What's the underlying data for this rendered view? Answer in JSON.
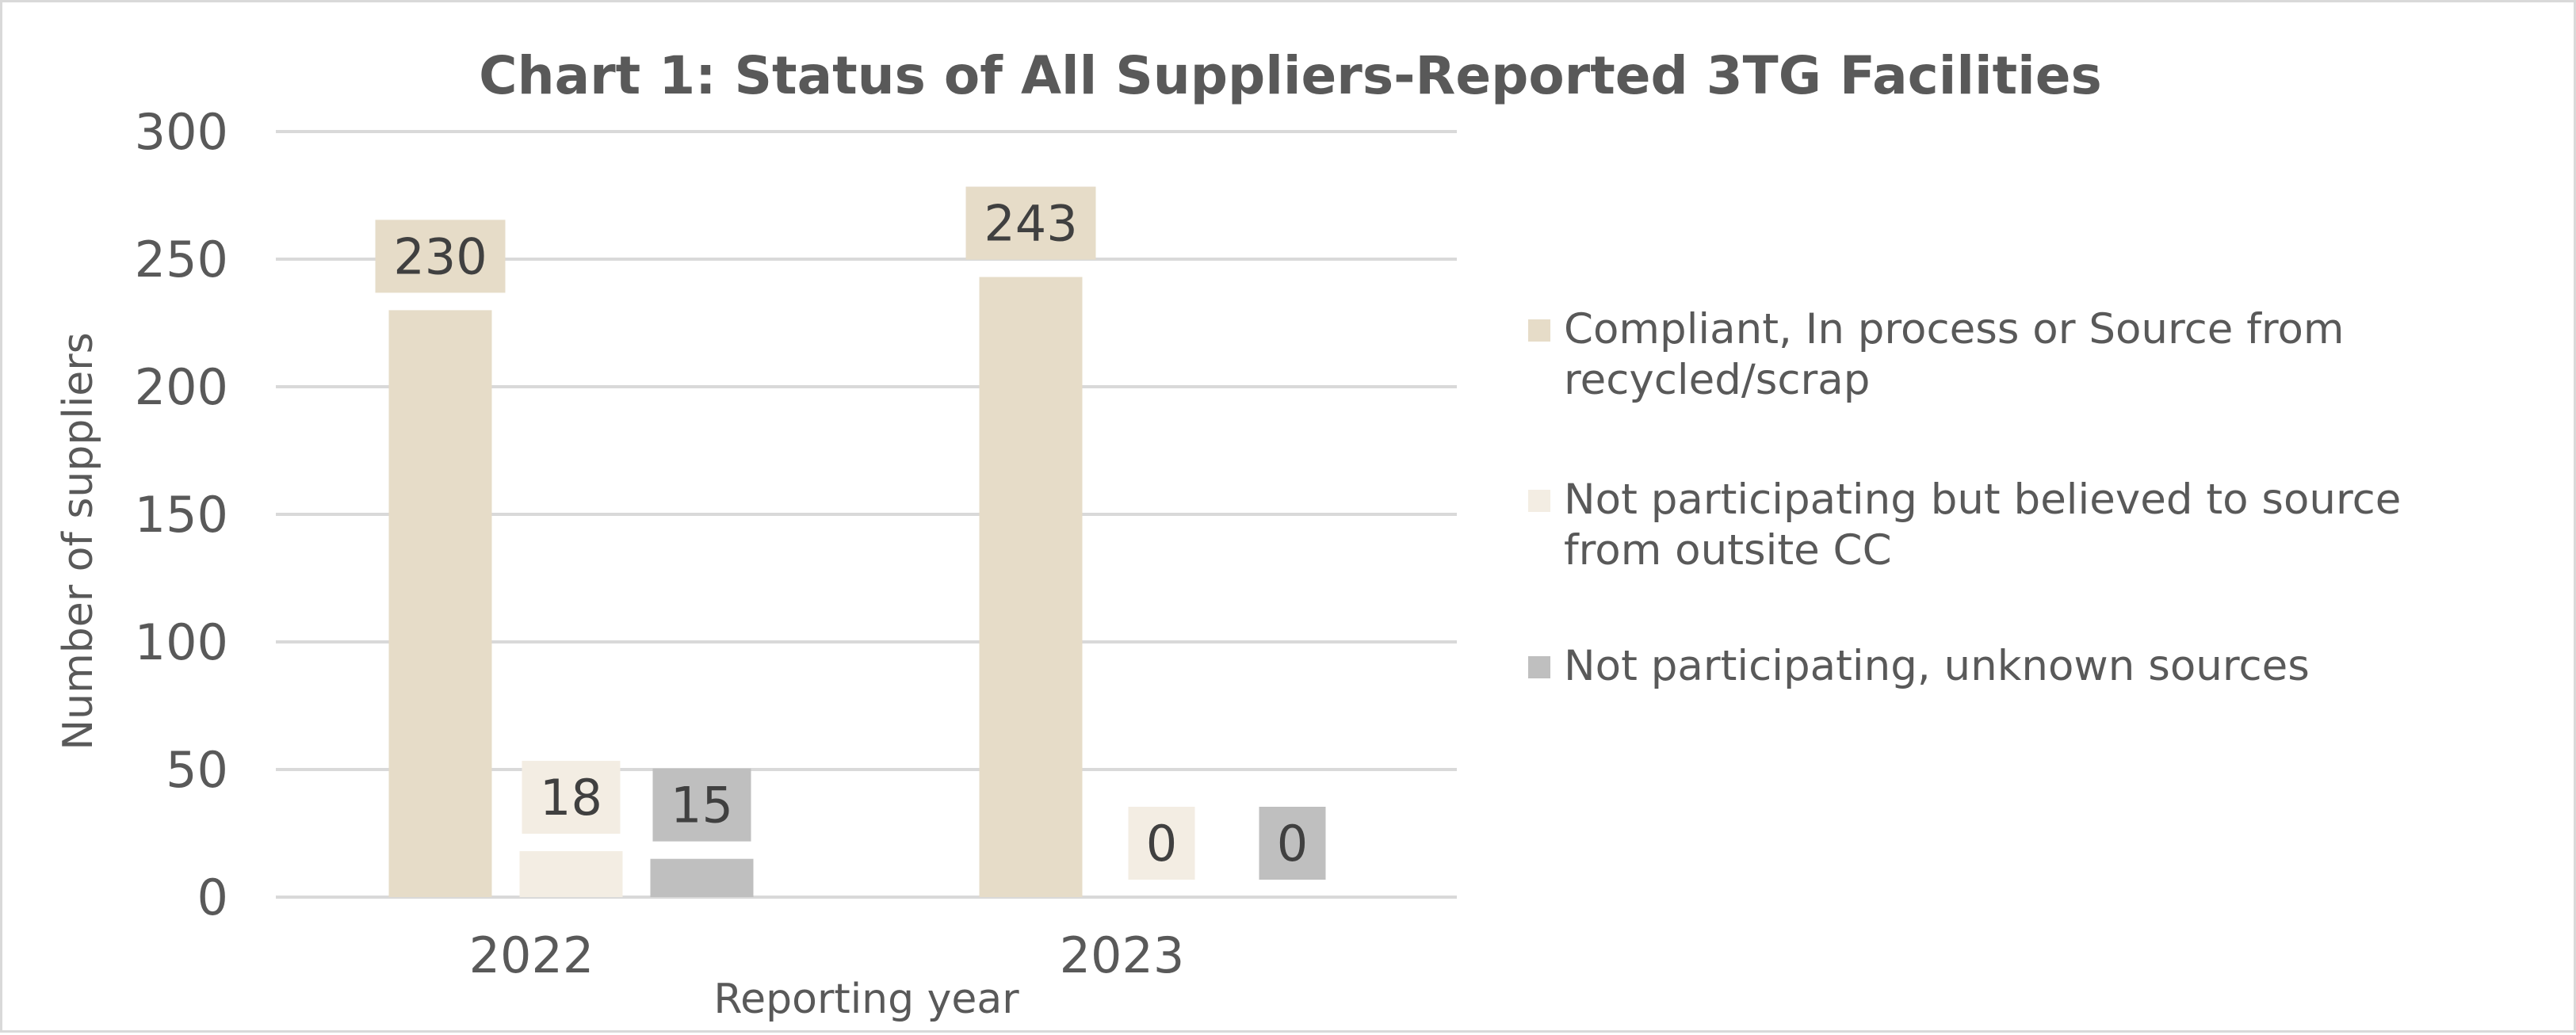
{
  "chart_data": {
    "type": "bar",
    "title": "Chart 1: Status of All Suppliers-Reported 3TG Facilities",
    "xlabel": "Reporting year",
    "ylabel": "Number of suppliers",
    "categories": [
      "2022",
      "2023"
    ],
    "ylim": [
      0,
      300
    ],
    "yticks": [
      0,
      50,
      100,
      150,
      200,
      250,
      300
    ],
    "grid": true,
    "legend_position": "right",
    "series": [
      {
        "name": "Compliant, In process or Source from recycled/scrap",
        "legend_lines": [
          "Compliant, In process or Source from",
          "recycled/scrap"
        ],
        "values": [
          230,
          243
        ],
        "color": "#e6dcc8",
        "label_bg": "#e6dcc8"
      },
      {
        "name": "Not participating but believed to source from outsite CC",
        "legend_lines": [
          "Not participating but believed to source",
          "from outsite CC"
        ],
        "values": [
          18,
          0
        ],
        "color": "#f3ede3",
        "label_bg": "#f3ede3"
      },
      {
        "name": "Not participating, unknown sources",
        "legend_lines": [
          "Not participating, unknown sources"
        ],
        "values": [
          15,
          0
        ],
        "color": "#bfbfbf",
        "label_bg": "#bfbfbf"
      }
    ]
  }
}
